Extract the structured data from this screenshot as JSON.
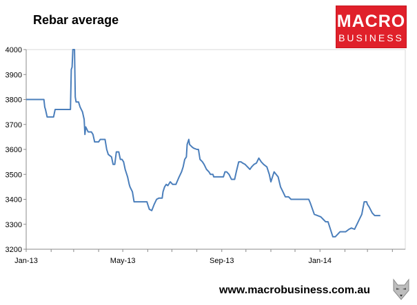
{
  "page": {
    "title": "Rebar average",
    "logo": {
      "line1": "MACRO",
      "line2": "BUSINESS",
      "color": "#e0202a"
    },
    "footer_url": "www.macrobusiness.com.au"
  },
  "chart_data": {
    "type": "line",
    "title": "Rebar average",
    "xlabel": "",
    "ylabel": "",
    "ylim": [
      3200,
      4000
    ],
    "yticks": [
      3200,
      3300,
      3400,
      3500,
      3600,
      3700,
      3800,
      3900,
      4000
    ],
    "xlim": [
      "2013-01-01",
      "2014-04-17"
    ],
    "xticks": [
      {
        "date": "2013-01-01",
        "label": "Jan-13"
      },
      {
        "date": "2013-05-01",
        "label": "May-13"
      },
      {
        "date": "2013-09-01",
        "label": "Sep-13"
      },
      {
        "date": "2014-01-01",
        "label": "Jan-14"
      }
    ],
    "vgrid": [
      "2013-01-01",
      "2013-02-01",
      "2013-03-01",
      "2013-04-01",
      "2013-05-01",
      "2013-06-01",
      "2013-07-01",
      "2013-08-01",
      "2013-09-01",
      "2013-10-01",
      "2013-11-01",
      "2013-12-01",
      "2014-01-01",
      "2014-02-01",
      "2014-03-01",
      "2014-04-01"
    ],
    "grid": {
      "horizontal": false,
      "vertical": false
    },
    "series": [
      {
        "color": "#4a7ebb",
        "points": [
          [
            "2013-01-01",
            3800
          ],
          [
            "2013-01-23",
            3800
          ],
          [
            "2013-01-24",
            3770
          ],
          [
            "2013-01-25",
            3760
          ],
          [
            "2013-01-27",
            3730
          ],
          [
            "2013-02-04",
            3730
          ],
          [
            "2013-02-06",
            3760
          ],
          [
            "2013-02-25",
            3760
          ],
          [
            "2013-02-26",
            3920
          ],
          [
            "2013-02-27",
            3930
          ],
          [
            "2013-02-28",
            4000
          ],
          [
            "2013-03-02",
            4000
          ],
          [
            "2013-03-03",
            3810
          ],
          [
            "2013-03-04",
            3790
          ],
          [
            "2013-03-07",
            3790
          ],
          [
            "2013-03-09",
            3770
          ],
          [
            "2013-03-12",
            3750
          ],
          [
            "2013-03-14",
            3720
          ],
          [
            "2013-03-15",
            3660
          ],
          [
            "2013-03-16",
            3690
          ],
          [
            "2013-03-19",
            3670
          ],
          [
            "2013-03-23",
            3670
          ],
          [
            "2013-03-25",
            3660
          ],
          [
            "2013-03-27",
            3630
          ],
          [
            "2013-04-01",
            3630
          ],
          [
            "2013-04-03",
            3640
          ],
          [
            "2013-04-09",
            3640
          ],
          [
            "2013-04-11",
            3600
          ],
          [
            "2013-04-13",
            3580
          ],
          [
            "2013-04-17",
            3570
          ],
          [
            "2013-04-19",
            3540
          ],
          [
            "2013-04-21",
            3540
          ],
          [
            "2013-04-23",
            3590
          ],
          [
            "2013-04-26",
            3590
          ],
          [
            "2013-04-28",
            3560
          ],
          [
            "2013-04-30",
            3560
          ],
          [
            "2013-05-02",
            3550
          ],
          [
            "2013-05-04",
            3520
          ],
          [
            "2013-05-07",
            3490
          ],
          [
            "2013-05-09",
            3460
          ],
          [
            "2013-05-10",
            3450
          ],
          [
            "2013-05-13",
            3430
          ],
          [
            "2013-05-15",
            3390
          ],
          [
            "2013-05-31",
            3390
          ],
          [
            "2013-06-01",
            3380
          ],
          [
            "2013-06-03",
            3360
          ],
          [
            "2013-06-06",
            3355
          ],
          [
            "2013-06-09",
            3380
          ],
          [
            "2013-06-12",
            3400
          ],
          [
            "2013-06-15",
            3405
          ],
          [
            "2013-06-19",
            3405
          ],
          [
            "2013-06-20",
            3430
          ],
          [
            "2013-06-22",
            3450
          ],
          [
            "2013-06-24",
            3460
          ],
          [
            "2013-06-26",
            3455
          ],
          [
            "2013-06-29",
            3470
          ],
          [
            "2013-07-02",
            3460
          ],
          [
            "2013-07-06",
            3460
          ],
          [
            "2013-07-10",
            3490
          ],
          [
            "2013-07-13",
            3510
          ],
          [
            "2013-07-15",
            3530
          ],
          [
            "2013-07-17",
            3560
          ],
          [
            "2013-07-19",
            3570
          ],
          [
            "2013-07-20",
            3620
          ],
          [
            "2013-07-22",
            3640
          ],
          [
            "2013-07-23",
            3620
          ],
          [
            "2013-07-26",
            3610
          ],
          [
            "2013-07-28",
            3605
          ],
          [
            "2013-08-01",
            3600
          ],
          [
            "2013-08-03",
            3600
          ],
          [
            "2013-08-05",
            3560
          ],
          [
            "2013-08-08",
            3550
          ],
          [
            "2013-08-10",
            3540
          ],
          [
            "2013-08-13",
            3520
          ],
          [
            "2013-08-16",
            3510
          ],
          [
            "2013-08-18",
            3500
          ],
          [
            "2013-08-21",
            3500
          ],
          [
            "2013-08-22",
            3490
          ],
          [
            "2013-09-03",
            3490
          ],
          [
            "2013-09-05",
            3510
          ],
          [
            "2013-09-07",
            3510
          ],
          [
            "2013-09-10",
            3500
          ],
          [
            "2013-09-13",
            3480
          ],
          [
            "2013-09-17",
            3480
          ],
          [
            "2013-09-19",
            3510
          ],
          [
            "2013-09-22",
            3550
          ],
          [
            "2013-09-25",
            3550
          ],
          [
            "2013-09-27",
            3545
          ],
          [
            "2013-09-30",
            3540
          ],
          [
            "2013-10-03",
            3530
          ],
          [
            "2013-10-06",
            3520
          ],
          [
            "2013-10-08",
            3530
          ],
          [
            "2013-10-11",
            3540
          ],
          [
            "2013-10-14",
            3545
          ],
          [
            "2013-10-17",
            3565
          ],
          [
            "2013-10-20",
            3550
          ],
          [
            "2013-10-23",
            3540
          ],
          [
            "2013-10-27",
            3530
          ],
          [
            "2013-10-30",
            3500
          ],
          [
            "2013-11-01",
            3470
          ],
          [
            "2013-11-03",
            3490
          ],
          [
            "2013-11-05",
            3510
          ],
          [
            "2013-11-10",
            3490
          ],
          [
            "2013-11-13",
            3450
          ],
          [
            "2013-11-16",
            3430
          ],
          [
            "2013-11-19",
            3410
          ],
          [
            "2013-11-23",
            3410
          ],
          [
            "2013-11-26",
            3400
          ],
          [
            "2013-12-18",
            3400
          ],
          [
            "2013-12-20",
            3385
          ],
          [
            "2013-12-25",
            3340
          ],
          [
            "2014-01-02",
            3330
          ],
          [
            "2014-01-05",
            3320
          ],
          [
            "2014-01-08",
            3310
          ],
          [
            "2014-01-11",
            3310
          ],
          [
            "2014-01-14",
            3280
          ],
          [
            "2014-01-17",
            3250
          ],
          [
            "2014-01-20",
            3250
          ],
          [
            "2014-01-23",
            3260
          ],
          [
            "2014-01-26",
            3270
          ],
          [
            "2014-02-02",
            3270
          ],
          [
            "2014-02-06",
            3280
          ],
          [
            "2014-02-09",
            3285
          ],
          [
            "2014-02-13",
            3280
          ],
          [
            "2014-02-16",
            3300
          ],
          [
            "2014-02-19",
            3320
          ],
          [
            "2014-02-22",
            3340
          ],
          [
            "2014-02-25",
            3390
          ],
          [
            "2014-02-28",
            3390
          ],
          [
            "2014-03-01",
            3380
          ],
          [
            "2014-03-03",
            3370
          ],
          [
            "2014-03-07",
            3345
          ],
          [
            "2014-03-10",
            3335
          ],
          [
            "2014-03-14",
            3335
          ],
          [
            "2014-03-17",
            3335
          ]
        ]
      }
    ]
  }
}
